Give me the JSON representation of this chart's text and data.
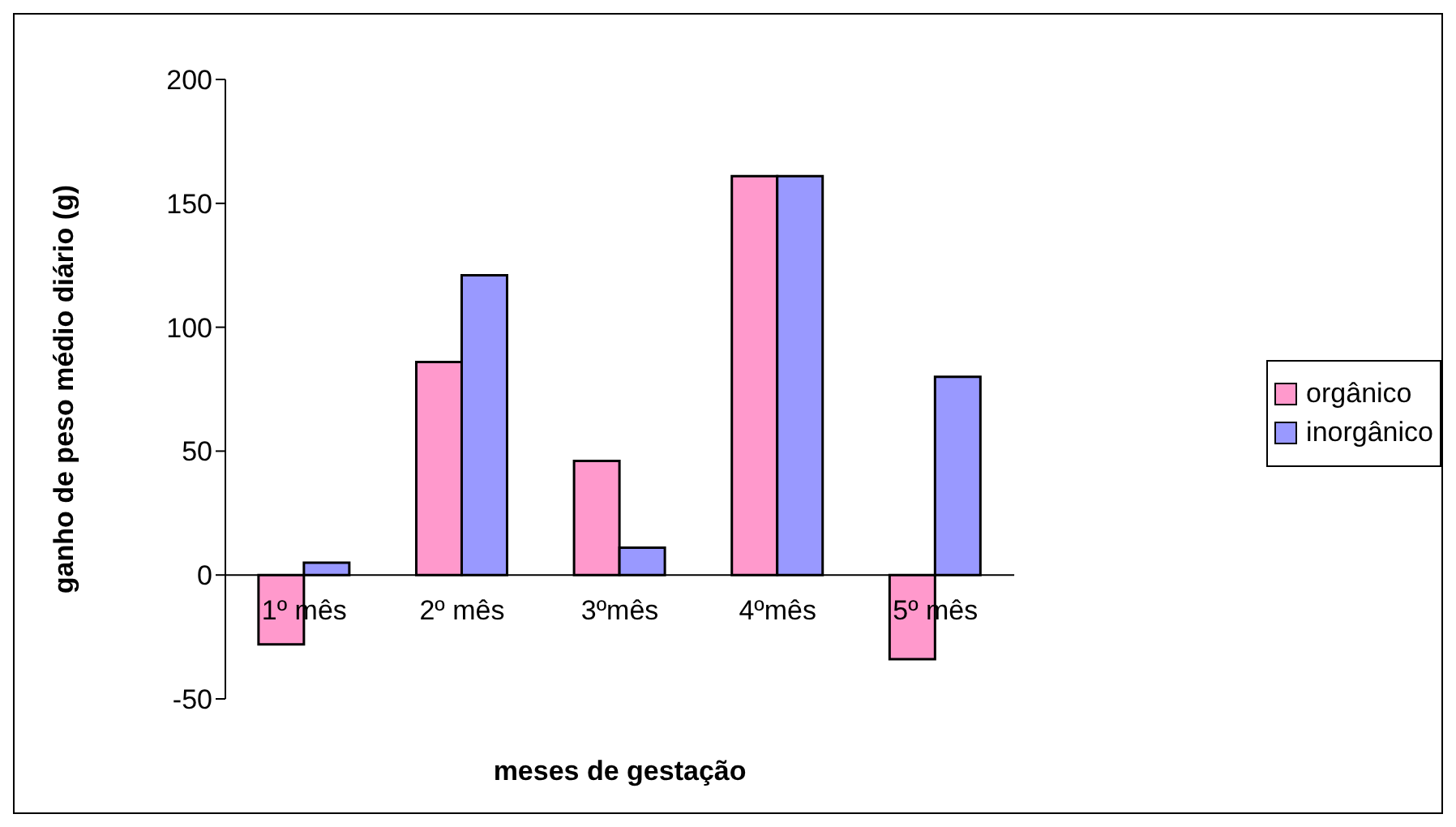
{
  "chart_data": {
    "type": "bar",
    "xlabel": "meses de gestação",
    "ylabel": "ganho de peso médio diário (g)",
    "categories": [
      "1º mês",
      "2º mês",
      "3ºmês",
      "4ºmês",
      "5º mês"
    ],
    "series": [
      {
        "name": "orgânico",
        "color": "#ff99cc",
        "values": [
          -28,
          86,
          46,
          161,
          -34
        ]
      },
      {
        "name": "inorgânico",
        "color": "#9999ff",
        "values": [
          5,
          121,
          11,
          161,
          80
        ]
      }
    ],
    "ylim": [
      -50,
      200
    ],
    "yticks": [
      -50,
      0,
      50,
      100,
      150,
      200
    ],
    "legend": "right"
  }
}
